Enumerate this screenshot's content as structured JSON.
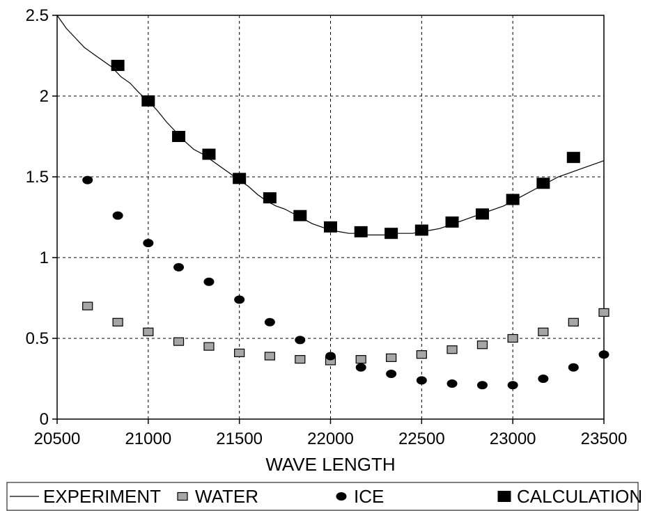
{
  "chart_data": {
    "type": "scatter",
    "title": "",
    "xlabel": "WAVE LENGTH",
    "ylabel": "",
    "xlim": [
      20500,
      23500
    ],
    "ylim": [
      0,
      2.5
    ],
    "x_ticks": [
      20500,
      21000,
      21500,
      22000,
      22500,
      23000,
      23500
    ],
    "y_ticks": [
      0,
      0.5,
      1,
      1.5,
      2,
      2.5
    ],
    "x_tick_labels": [
      "20500",
      "21000",
      "21500",
      "22000",
      "22500",
      "23000",
      "23500"
    ],
    "y_tick_labels": [
      "0",
      "0.5",
      "1",
      "1.5",
      "2",
      "2.5"
    ],
    "grid": true,
    "legend_position": "bottom",
    "series": [
      {
        "name": "EXPERIMENT",
        "marker": "line",
        "color": "#000000",
        "x": [
          20500,
          20550,
          20600,
          20650,
          20700,
          20750,
          20800,
          20850,
          20900,
          20950,
          21000,
          21050,
          21100,
          21150,
          21200,
          21250,
          21300,
          21350,
          21400,
          21450,
          21500,
          21550,
          21600,
          21650,
          21700,
          21750,
          21800,
          21850,
          21900,
          21950,
          22000,
          22050,
          22100,
          22150,
          22200,
          22250,
          22300,
          22350,
          22400,
          22450,
          22500,
          22550,
          22600,
          22650,
          22700,
          22750,
          22800,
          22850,
          22900,
          22950,
          23000,
          23050,
          23100,
          23150,
          23200,
          23250,
          23300,
          23350,
          23400,
          23450,
          23500
        ],
        "y": [
          2.5,
          2.42,
          2.36,
          2.3,
          2.26,
          2.22,
          2.18,
          2.12,
          2.08,
          2.02,
          1.97,
          1.91,
          1.84,
          1.78,
          1.72,
          1.67,
          1.64,
          1.6,
          1.56,
          1.52,
          1.48,
          1.44,
          1.39,
          1.35,
          1.32,
          1.3,
          1.27,
          1.24,
          1.21,
          1.19,
          1.17,
          1.16,
          1.15,
          1.15,
          1.14,
          1.14,
          1.14,
          1.15,
          1.15,
          1.15,
          1.16,
          1.17,
          1.18,
          1.2,
          1.22,
          1.24,
          1.26,
          1.28,
          1.3,
          1.32,
          1.35,
          1.38,
          1.41,
          1.44,
          1.47,
          1.5,
          1.52,
          1.54,
          1.56,
          1.58,
          1.6
        ]
      },
      {
        "name": "WATER",
        "marker": "square",
        "color": "#a6a6a6",
        "x": [
          20667,
          20833,
          21000,
          21167,
          21333,
          21500,
          21667,
          21833,
          22000,
          22167,
          22333,
          22500,
          22667,
          22833,
          23000,
          23167,
          23333,
          23500
        ],
        "y": [
          0.7,
          0.6,
          0.54,
          0.48,
          0.45,
          0.41,
          0.39,
          0.37,
          0.36,
          0.37,
          0.38,
          0.4,
          0.43,
          0.46,
          0.5,
          0.54,
          0.6,
          0.66
        ]
      },
      {
        "name": "ICE",
        "marker": "circle",
        "color": "#000000",
        "x": [
          20667,
          20833,
          21000,
          21167,
          21333,
          21500,
          21667,
          21833,
          22000,
          22167,
          22333,
          22500,
          22667,
          22833,
          23000,
          23167,
          23333,
          23500
        ],
        "y": [
          1.48,
          1.26,
          1.09,
          0.94,
          0.85,
          0.74,
          0.6,
          0.49,
          0.39,
          0.32,
          0.28,
          0.24,
          0.22,
          0.21,
          0.21,
          0.25,
          0.32,
          0.4
        ]
      },
      {
        "name": "CALCULATION",
        "marker": "square",
        "color": "#000000",
        "x": [
          20833,
          21000,
          21167,
          21333,
          21500,
          21667,
          21833,
          22000,
          22167,
          22333,
          22500,
          22667,
          22833,
          23000,
          23167,
          23333
        ],
        "y": [
          2.19,
          1.97,
          1.75,
          1.64,
          1.49,
          1.37,
          1.26,
          1.19,
          1.16,
          1.15,
          1.17,
          1.22,
          1.27,
          1.36,
          1.46,
          1.62
        ]
      }
    ]
  }
}
